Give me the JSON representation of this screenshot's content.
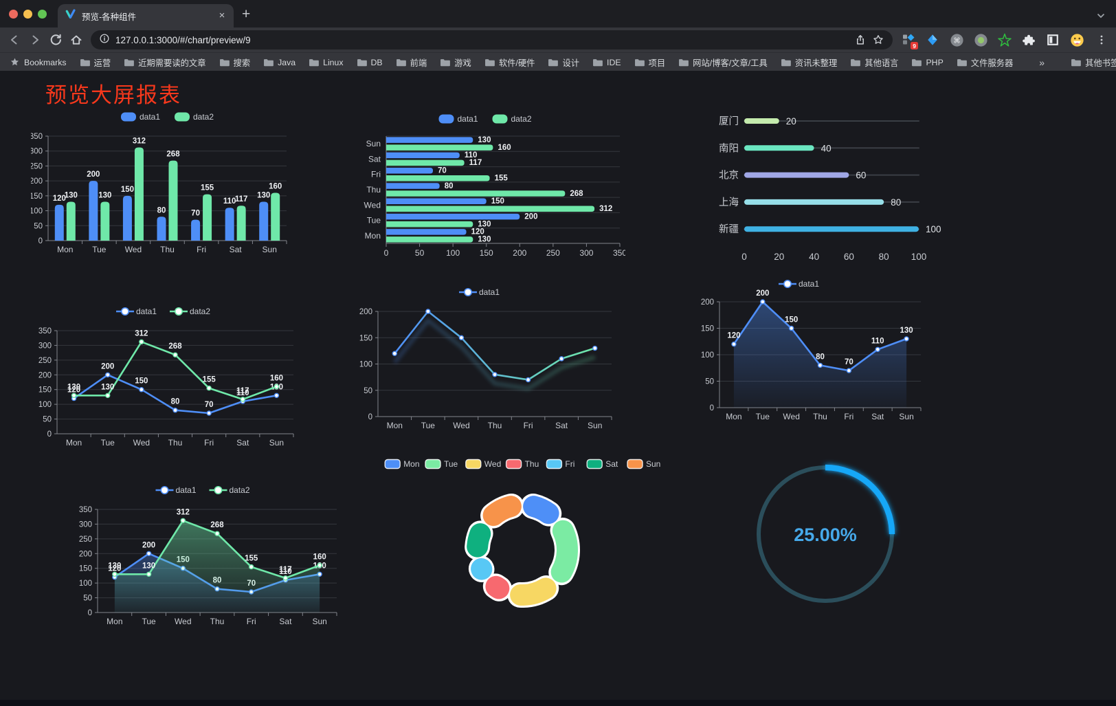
{
  "browser": {
    "tab": {
      "title": "预览-各种组件"
    },
    "url": "127.0.0.1:3000/#/chart/preview/9",
    "extension_badge": "9",
    "bookmarks_label": "Bookmarks",
    "bookmarks": [
      "运营",
      "近期需要读的文章",
      "搜索",
      "Java",
      "Linux",
      "DB",
      "前端",
      "游戏",
      "软件/硬件",
      "设计",
      "IDE",
      "项目",
      "网站/博客/文章/工具",
      "资讯未整理",
      "其他语言",
      "PHP",
      "文件服务器"
    ],
    "bookmarks_overflow": "»",
    "other_bookmarks": "其他书签"
  },
  "page": {
    "title": "预览大屏报表"
  },
  "chart_data": [
    {
      "id": "bar-vertical",
      "type": "bar",
      "categories": [
        "Mon",
        "Tue",
        "Wed",
        "Thu",
        "Fri",
        "Sat",
        "Sun"
      ],
      "series": [
        {
          "name": "data1",
          "color": "#4E8EF7",
          "values": [
            120,
            200,
            150,
            80,
            70,
            110,
            130
          ]
        },
        {
          "name": "data2",
          "color": "#6FE8A9",
          "values": [
            130,
            130,
            312,
            268,
            155,
            117,
            160
          ]
        }
      ],
      "ylim": [
        0,
        350
      ],
      "ytick_step": 50,
      "legend_position": "top",
      "grid": true,
      "value_labels": true
    },
    {
      "id": "bar-horizontal",
      "type": "hbar",
      "categories_top_to_bottom": [
        "Sun",
        "Sat",
        "Fri",
        "Thu",
        "Wed",
        "Tue",
        "Mon"
      ],
      "series": [
        {
          "name": "data1",
          "color": "#4E8EF7",
          "values": [
            130,
            110,
            70,
            80,
            150,
            200,
            120
          ]
        },
        {
          "name": "data2",
          "color": "#6FE8A9",
          "values": [
            160,
            117,
            155,
            268,
            312,
            130,
            130
          ]
        }
      ],
      "xlim": [
        0,
        350
      ],
      "xtick_step": 50,
      "legend_position": "top",
      "grid": true,
      "value_labels": true
    },
    {
      "id": "progress-bars",
      "type": "progress",
      "max": 100,
      "ticks": [
        0,
        20,
        40,
        60,
        80,
        100
      ],
      "rows": [
        {
          "label": "厦门",
          "value": 20,
          "color": "#C4EBAD"
        },
        {
          "label": "南阳",
          "value": 40,
          "color": "#6BE6C1"
        },
        {
          "label": "北京",
          "value": 60,
          "color": "#A0A7E6"
        },
        {
          "label": "上海",
          "value": 80,
          "color": "#96DEE8"
        },
        {
          "label": "新疆",
          "value": 100,
          "color": "#3FB1E3"
        }
      ]
    },
    {
      "id": "line-two-series",
      "type": "line",
      "categories": [
        "Mon",
        "Tue",
        "Wed",
        "Thu",
        "Fri",
        "Sat",
        "Sun"
      ],
      "series": [
        {
          "name": "data1",
          "color": "#4E8EF7",
          "values": [
            120,
            200,
            150,
            80,
            70,
            110,
            130
          ]
        },
        {
          "name": "data2",
          "color": "#6FE8A9",
          "values": [
            130,
            130,
            312,
            268,
            155,
            117,
            160
          ]
        }
      ],
      "ylim": [
        0,
        350
      ],
      "ytick_step": 50,
      "legend_position": "top",
      "grid": true,
      "value_labels": true
    },
    {
      "id": "line-gradient",
      "type": "line",
      "categories": [
        "Mon",
        "Tue",
        "Wed",
        "Thu",
        "Fri",
        "Sat",
        "Sun"
      ],
      "series": [
        {
          "name": "data1",
          "gradient": [
            "#4E8EF7",
            "#6FE8A9"
          ],
          "shadow": true,
          "values": [
            120,
            200,
            150,
            80,
            70,
            110,
            130
          ]
        }
      ],
      "ylim": [
        0,
        200
      ],
      "ytick_step": 50,
      "legend_position": "top",
      "grid": true,
      "value_labels": false
    },
    {
      "id": "line-area-single",
      "type": "line",
      "categories": [
        "Mon",
        "Tue",
        "Wed",
        "Thu",
        "Fri",
        "Sat",
        "Sun"
      ],
      "series": [
        {
          "name": "data1",
          "color": "#4E8EF7",
          "area": true,
          "area_opacity": 0.4,
          "values": [
            120,
            200,
            150,
            80,
            70,
            110,
            130
          ]
        }
      ],
      "ylim": [
        0,
        200
      ],
      "ytick_step": 50,
      "legend_position": "top",
      "grid": true,
      "value_labels": true
    },
    {
      "id": "line-two-series-area",
      "type": "line",
      "categories": [
        "Mon",
        "Tue",
        "Wed",
        "Thu",
        "Fri",
        "Sat",
        "Sun"
      ],
      "series": [
        {
          "name": "data1",
          "color": "#4E8EF7",
          "area": true,
          "area_opacity": 0.35,
          "values": [
            120,
            200,
            150,
            80,
            70,
            110,
            130
          ]
        },
        {
          "name": "data2",
          "color": "#6FE8A9",
          "area": true,
          "area_opacity": 0.45,
          "values": [
            130,
            130,
            312,
            268,
            155,
            117,
            160
          ]
        }
      ],
      "ylim": [
        0,
        350
      ],
      "ytick_step": 50,
      "legend_position": "top",
      "grid": true,
      "value_labels": true
    },
    {
      "id": "donut",
      "type": "pie",
      "inner_radius_pct": 60,
      "legend_position": "top",
      "slices": [
        {
          "label": "Mon",
          "value": 120,
          "color": "#4E8FF7"
        },
        {
          "label": "Tue",
          "value": 200,
          "color": "#7BEBA3"
        },
        {
          "label": "Wed",
          "value": 150,
          "color": "#F7D763"
        },
        {
          "label": "Thu",
          "value": 80,
          "color": "#F7696F"
        },
        {
          "label": "Fri",
          "value": 70,
          "color": "#58C8F5"
        },
        {
          "label": "Sat",
          "value": 110,
          "color": "#0FB07F"
        },
        {
          "label": "Sun",
          "value": 130,
          "color": "#F7934A"
        }
      ]
    },
    {
      "id": "gauge",
      "type": "gauge",
      "percent": 25,
      "display": "25.00%",
      "progress_color": "#19A7F7",
      "track_color": "#2B4E5B",
      "text_color": "#46A9EA"
    }
  ]
}
